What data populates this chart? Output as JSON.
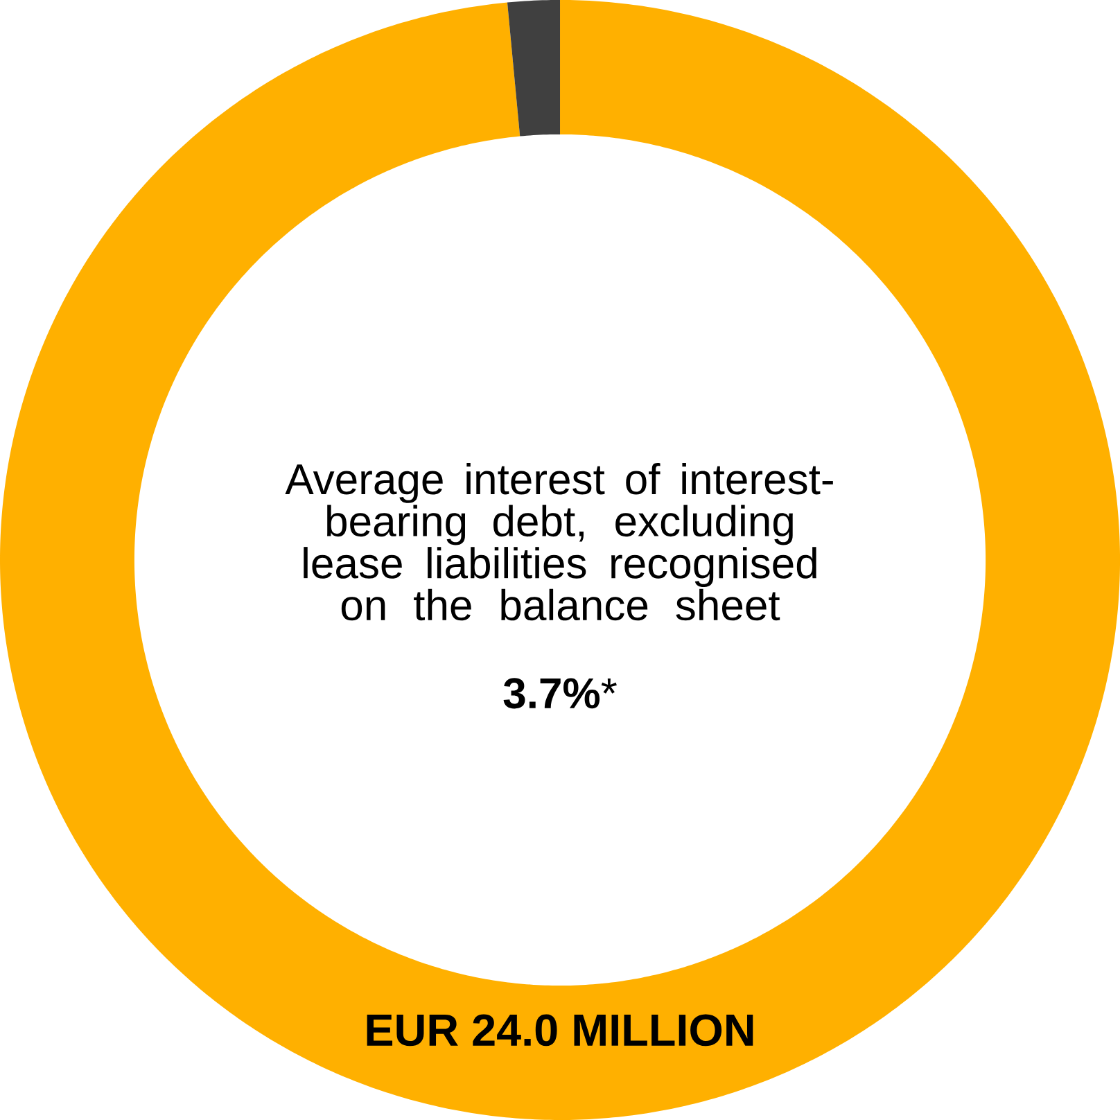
{
  "chart_data": {
    "type": "donut",
    "categories": [
      null,
      null
    ],
    "values": [
      98.5,
      1.5
    ],
    "colors": [
      "#ffb000",
      "#404040"
    ],
    "annotations": [
      "Average interest of interest-bearing debt, excluding lease liabilities recognised on the balance sheet",
      "**3.7%***",
      "**EUR 24.0 MILLION**"
    ]
  }
}
